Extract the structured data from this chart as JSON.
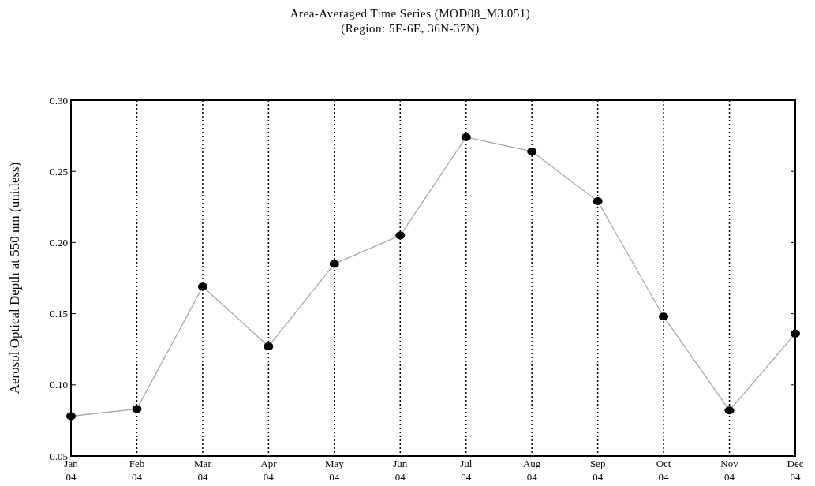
{
  "chart_data": {
    "type": "line",
    "title": "Area-Averaged Time Series (MOD08_M3.051)",
    "subtitle": "(Region: 5E-6E, 36N-37N)",
    "ylabel": "Aerosol Optical Depth at 550 nm  (unitless)",
    "categories": [
      "Jan 04",
      "Feb 04",
      "Mar 04",
      "Apr 04",
      "May 04",
      "Jun 04",
      "Jul 04",
      "Aug 04",
      "Sep 04",
      "Oct 04",
      "Nov 04",
      "Dec 04"
    ],
    "series": [
      {
        "color": "#000000",
        "values": [
          0.078,
          0.083,
          0.169,
          0.127,
          0.185,
          0.205,
          0.274,
          0.264,
          0.229,
          0.148,
          0.082,
          0.136
        ]
      }
    ],
    "ylim": [
      0.05,
      0.3
    ],
    "yticks": [
      0.05,
      {
        "value": 0.1,
        "label": "0.10"
      },
      0.15,
      {
        "value": 0.2,
        "label": "0.20"
      },
      0.25,
      {
        "value": 0.3,
        "label": "0.30"
      }
    ],
    "grid": "x",
    "marker": "circle",
    "line_style": "solid"
  }
}
